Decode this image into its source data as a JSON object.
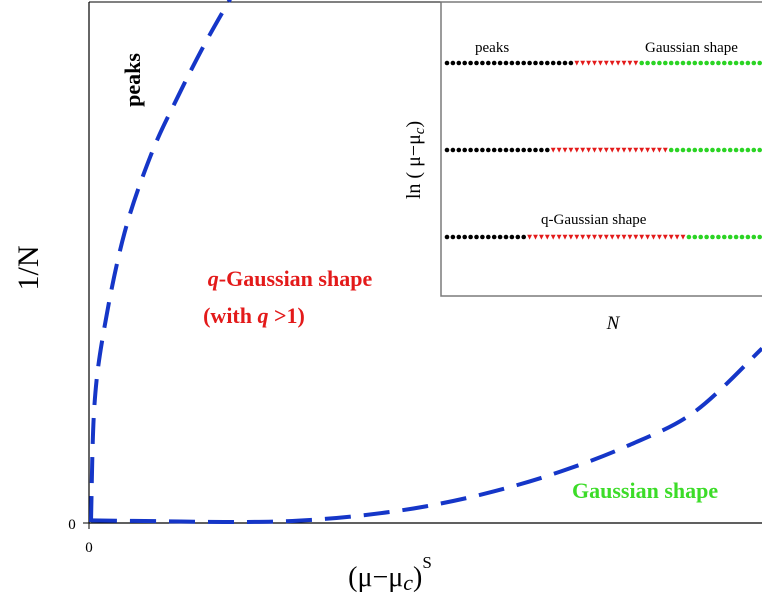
{
  "chart_data": [
    {
      "type": "line",
      "xlabel_main": "(μ−μ",
      "xlabel_sub": "c",
      "xlabel_close": ")",
      "xlabel_sup": "S",
      "ylabel": "1/N",
      "x_tick_labels": [
        "0"
      ],
      "y_tick_labels": [
        "0"
      ],
      "series": [
        {
          "style": "dashed",
          "color": "#1536c8",
          "x": [
            0,
            0.005,
            0.02,
            0.05,
            0.09,
            0.13,
            0.17,
            0.21
          ],
          "y": [
            0,
            0.22,
            0.37,
            0.55,
            0.7,
            0.81,
            0.91,
            1.0
          ]
        },
        {
          "style": "dashed",
          "color": "#1536c8",
          "x": [
            0,
            0.1,
            0.2,
            0.3,
            0.4,
            0.5,
            0.6,
            0.7,
            0.8,
            0.9,
            1.0
          ],
          "y": [
            0.003,
            0.0015,
            0.0,
            0.002,
            0.012,
            0.03,
            0.058,
            0.096,
            0.145,
            0.21,
            0.33
          ]
        }
      ],
      "annotations": {
        "peaks": "peaks",
        "qgauss_q": "q",
        "qgauss_rest": "-Gaussian shape",
        "qgauss_with": "(with ",
        "qgauss_q2": "q",
        "qgauss_gt": " >1)",
        "gaussian": "Gaussian shape"
      },
      "colors": {
        "peaks": "#000000",
        "qgauss": "#e31a1a",
        "gaussian": "#3cdc28",
        "curve": "#1536c8"
      }
    },
    {
      "type": "scatter",
      "inset": true,
      "xlabel": "N",
      "ylabel_pre": "ln ( μ−μ",
      "ylabel_sub": "c",
      "ylabel_post": ")",
      "labels": {
        "peaks": "peaks",
        "gaussian": "Gaussian shape",
        "qgauss": "q-Gaussian shape"
      },
      "rows": [
        {
          "segments": [
            {
              "phase": "peaks",
              "count": 22,
              "color": "#000000",
              "marker": "circle"
            },
            {
              "phase": "q-Gaussian",
              "count": 11,
              "color": "#e31a1a",
              "marker": "triangle"
            },
            {
              "phase": "Gaussian",
              "count": 21,
              "color": "#2bd424",
              "marker": "circle"
            }
          ]
        },
        {
          "segments": [
            {
              "phase": "peaks",
              "count": 18,
              "color": "#000000",
              "marker": "circle"
            },
            {
              "phase": "q-Gaussian",
              "count": 20,
              "color": "#e31a1a",
              "marker": "triangle"
            },
            {
              "phase": "Gaussian",
              "count": 16,
              "color": "#2bd424",
              "marker": "circle"
            }
          ]
        },
        {
          "segments": [
            {
              "phase": "peaks",
              "count": 14,
              "color": "#000000",
              "marker": "circle"
            },
            {
              "phase": "q-Gaussian",
              "count": 27,
              "color": "#e31a1a",
              "marker": "triangle"
            },
            {
              "phase": "Gaussian",
              "count": 13,
              "color": "#2bd424",
              "marker": "circle"
            }
          ]
        }
      ]
    }
  ]
}
